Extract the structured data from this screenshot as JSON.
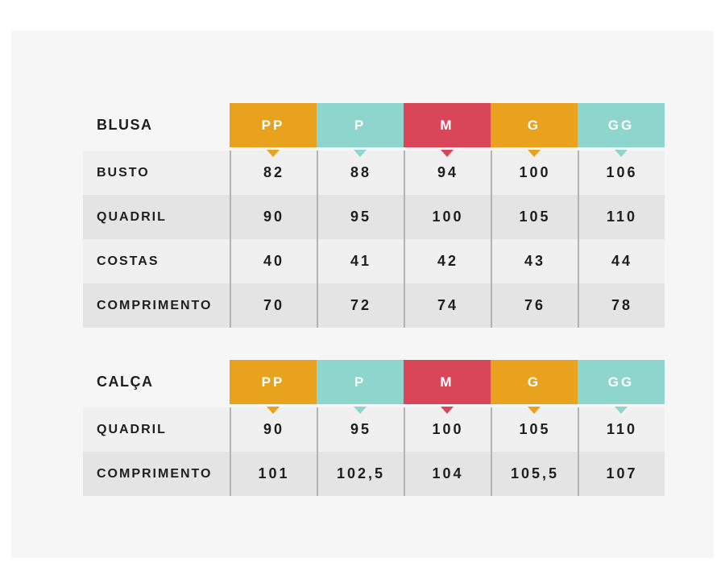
{
  "page": {
    "background": "#ffffff",
    "panel_background": "#f6f6f6"
  },
  "colors": {
    "orange": "#E8A21D",
    "teal": "#8ED5CE",
    "red": "#D9465A",
    "row_light": "#F0F0F0",
    "row_dark": "#E4E4E4",
    "header_text": "#FFFFFF",
    "label_text": "#1E1E1E",
    "separator": "#B3B3B3"
  },
  "sizes": [
    "PP",
    "P",
    "M",
    "G",
    "GG"
  ],
  "size_color_keys": [
    "orange",
    "teal",
    "red",
    "orange",
    "teal"
  ],
  "tables": [
    {
      "title": "BLUSA",
      "rows": [
        {
          "label": "BUSTO",
          "values": [
            "82",
            "88",
            "94",
            "100",
            "106"
          ]
        },
        {
          "label": "QUADRIL",
          "values": [
            "90",
            "95",
            "100",
            "105",
            "110"
          ]
        },
        {
          "label": "COSTAS",
          "values": [
            "40",
            "41",
            "42",
            "43",
            "44"
          ]
        },
        {
          "label": "COMPRIMENTO",
          "values": [
            "70",
            "72",
            "74",
            "76",
            "78"
          ]
        }
      ]
    },
    {
      "title": "CALÇA",
      "rows": [
        {
          "label": "QUADRIL",
          "values": [
            "90",
            "95",
            "100",
            "105",
            "110"
          ]
        },
        {
          "label": "COMPRIMENTO",
          "values": [
            "101",
            "102,5",
            "104",
            "105,5",
            "107"
          ]
        }
      ]
    }
  ],
  "chart_data": [
    {
      "type": "table",
      "title": "BLUSA",
      "columns": [
        "BLUSA",
        "PP",
        "P",
        "M",
        "G",
        "GG"
      ],
      "rows": [
        [
          "BUSTO",
          82,
          88,
          94,
          100,
          106
        ],
        [
          "QUADRIL",
          90,
          95,
          100,
          105,
          110
        ],
        [
          "COSTAS",
          40,
          41,
          42,
          43,
          44
        ],
        [
          "COMPRIMENTO",
          70,
          72,
          74,
          76,
          78
        ]
      ]
    },
    {
      "type": "table",
      "title": "CALÇA",
      "columns": [
        "CALÇA",
        "PP",
        "P",
        "M",
        "G",
        "GG"
      ],
      "rows": [
        [
          "QUADRIL",
          90,
          95,
          100,
          105,
          110
        ],
        [
          "COMPRIMENTO",
          101,
          102.5,
          104,
          105.5,
          107
        ]
      ]
    }
  ]
}
